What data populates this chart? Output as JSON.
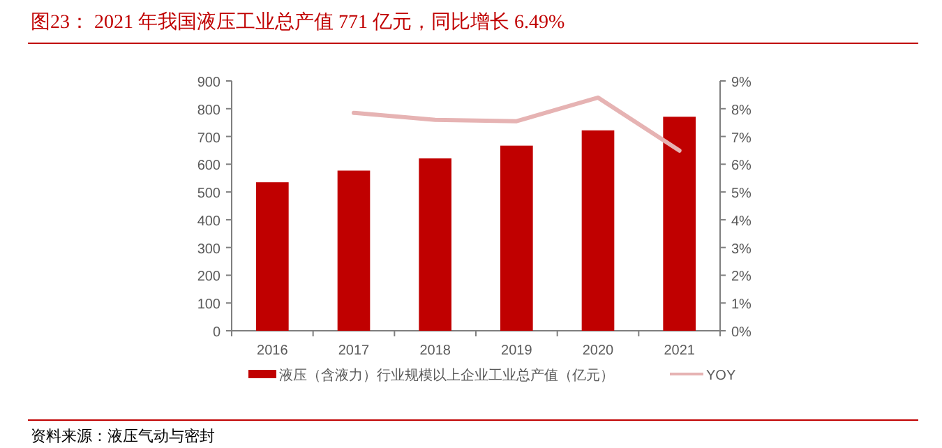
{
  "chart_data": {
    "type": "bar",
    "title": "图23：  2021 年我国液压工业总产值 771 亿元，同比增长 6.49%",
    "categories": [
      "2016",
      "2017",
      "2018",
      "2019",
      "2020",
      "2021"
    ],
    "series": [
      {
        "name": "液压（含液力）行业规模以上企业工业总产值（亿元）",
        "color": "#c00000",
        "values": [
          535,
          577,
          621,
          667,
          722,
          771
        ]
      },
      {
        "name": "YOY",
        "type": "line",
        "axis": "y2",
        "color": "#e6b3b3",
        "values": [
          null,
          7.85,
          7.6,
          7.55,
          8.4,
          6.49
        ]
      }
    ],
    "ylim": [
      0,
      900
    ],
    "yticks": [
      0,
      100,
      200,
      300,
      400,
      500,
      600,
      700,
      800,
      900
    ],
    "y2lim": [
      0,
      9
    ],
    "y2ticks": [
      {
        "value": 0,
        "label": "0%"
      },
      {
        "value": 1,
        "label": "1%"
      },
      {
        "value": 2,
        "label": "2%"
      },
      {
        "value": 3,
        "label": "3%"
      },
      {
        "value": 4,
        "label": "4%"
      },
      {
        "value": 5,
        "label": "5%"
      },
      {
        "value": 6,
        "label": "6%"
      },
      {
        "value": 7,
        "label": "7%"
      },
      {
        "value": 8,
        "label": "8%"
      },
      {
        "value": 9,
        "label": "9%"
      }
    ],
    "legend": "bottom",
    "annotations": [
      "资料来源：液压气动与密封"
    ]
  }
}
